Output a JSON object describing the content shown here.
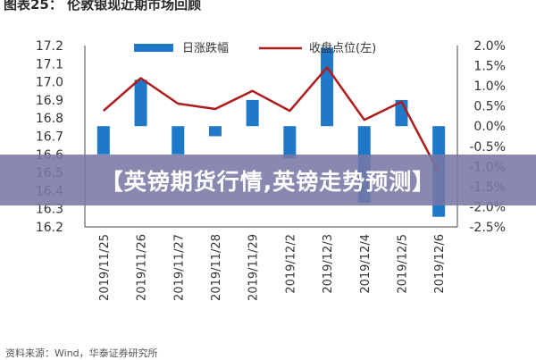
{
  "figure_title": "图表25：   伦敦银现近期市场回顾",
  "banner_text": "【英镑期货行情,英镑走势预测】",
  "source_text": "资料来源：Wind，华泰证券研究所",
  "chart_data": {
    "type": "bar-line-combo",
    "categories": [
      "2019/11/25",
      "2019/11/26",
      "2019/11/27",
      "2019/11/28",
      "2019/11/29",
      "2019/12/2",
      "2019/12/3",
      "2019/12/4",
      "2019/12/5",
      "2019/12/6"
    ],
    "series": [
      {
        "name": "日涨跌幅",
        "kind": "bar",
        "axis": "right",
        "color": "#1f78c8",
        "values": [
          -0.7,
          1.15,
          -0.7,
          -0.25,
          0.65,
          -0.8,
          1.95,
          -1.9,
          0.65,
          -2.25
        ]
      },
      {
        "name": "收盘点位(左)",
        "kind": "line",
        "axis": "left",
        "color": "#b01c1c",
        "values": [
          16.84,
          17.02,
          16.88,
          16.85,
          16.95,
          16.84,
          17.08,
          16.79,
          16.89,
          16.5
        ]
      }
    ],
    "y_left": {
      "min": 16.2,
      "max": 17.2,
      "ticks": [
        "16.2",
        "16.3",
        "16.4",
        "16.5",
        "16.6",
        "16.7",
        "16.8",
        "16.9",
        "17.0",
        "17.1",
        "17.2"
      ]
    },
    "y_right": {
      "min": -2.5,
      "max": 2.0,
      "ticks": [
        "-2.5%",
        "-2.0%",
        "-1.5%",
        "-1.0%",
        "-0.5%",
        "0.0%",
        "0.5%",
        "1.0%",
        "1.5%",
        "2.0%"
      ]
    },
    "grid": false,
    "legend_position": "top"
  }
}
